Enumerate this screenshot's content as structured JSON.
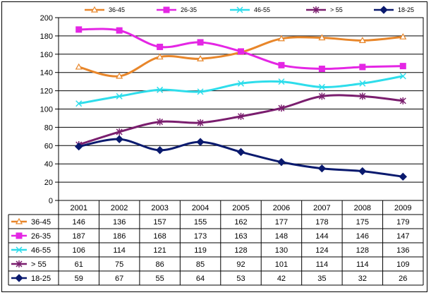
{
  "chart_data": {
    "type": "line",
    "title": "",
    "xlabel": "",
    "ylabel": "",
    "x": [
      "2001",
      "2002",
      "2003",
      "2004",
      "2005",
      "2006",
      "2007",
      "2008",
      "2009"
    ],
    "ylim": [
      0,
      200
    ],
    "yticks": [
      0,
      20,
      40,
      60,
      80,
      100,
      120,
      140,
      160,
      180,
      200
    ],
    "grid": true,
    "legend_position": "top",
    "smooth": true,
    "data_table": true,
    "series": [
      {
        "name": "36-45",
        "color": "#E8862A",
        "marker": "triangle",
        "values": [
          146,
          136,
          157,
          155,
          162,
          177,
          178,
          175,
          179
        ]
      },
      {
        "name": "26-35",
        "color": "#E426E4",
        "marker": "square",
        "values": [
          187,
          186,
          168,
          173,
          163,
          148,
          144,
          146,
          147
        ]
      },
      {
        "name": "46-55",
        "color": "#2EDDEB",
        "marker": "cross",
        "values": [
          106,
          114,
          121,
          119,
          128,
          130,
          124,
          128,
          136
        ]
      },
      {
        "name": "> 55",
        "color": "#7A1E6E",
        "marker": "star",
        "values": [
          61,
          75,
          86,
          85,
          92,
          101,
          114,
          114,
          109
        ]
      },
      {
        "name": "18-25",
        "color": "#0A1A6E",
        "marker": "diamond",
        "values": [
          59,
          67,
          55,
          64,
          53,
          42,
          35,
          32,
          26
        ]
      }
    ]
  }
}
